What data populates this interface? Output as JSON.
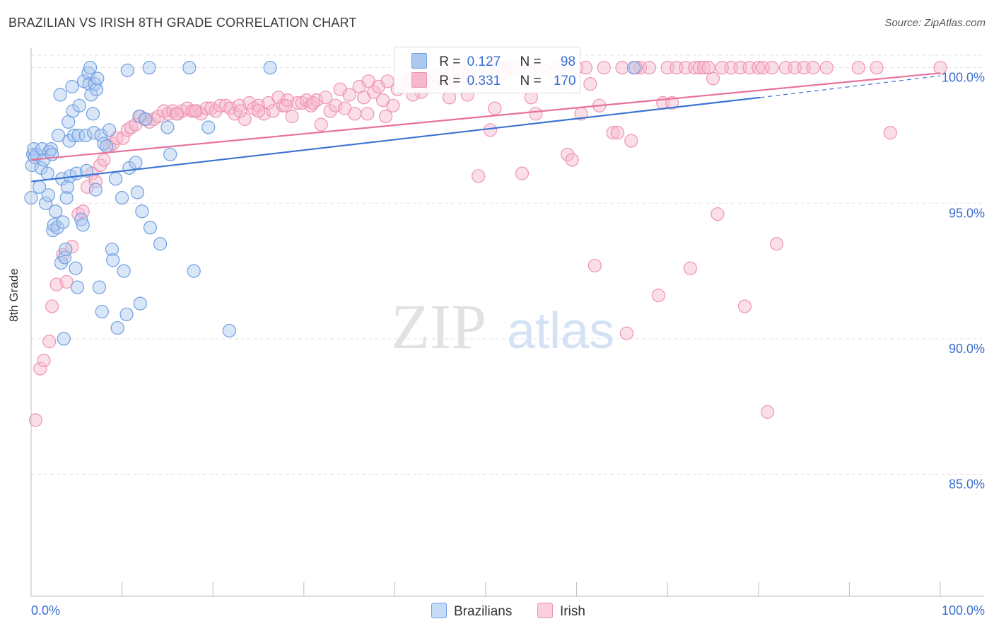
{
  "header": {
    "title": "BRAZILIAN VS IRISH 8TH GRADE CORRELATION CHART",
    "source": "Source: ZipAtlas.com"
  },
  "watermark": "ZIPatlas",
  "legend": {
    "items": [
      {
        "r_label": "R =",
        "r_value": "0.127",
        "n_label": "N =",
        "n_value": "98"
      },
      {
        "r_label": "R =",
        "r_value": "0.331",
        "n_label": "N =",
        "n_value": "170"
      }
    ]
  },
  "bottom_legend": [
    "Brazilians",
    "Irish"
  ],
  "colors": {
    "brazilians_fill": "#aac8f0",
    "brazilians_stroke": "#6f9fe0",
    "brazilians_line": "#3b73d1",
    "irish_fill": "#f6b8cb",
    "irish_stroke": "#ee93b0",
    "irish_line": "#e8709a",
    "tick_text": "#3b6fd1",
    "grid": "#e3e3e3"
  },
  "chart_data": {
    "type": "scatter",
    "title": "BRAZILIAN VS IRISH 8TH GRADE CORRELATION CHART",
    "xlabel": "",
    "ylabel": "8th Grade",
    "xlim": [
      0,
      100
    ],
    "ylim": [
      80.5,
      100.8
    ],
    "x_tick_labels": [
      "0.0%",
      "100.0%"
    ],
    "y_ticks": [
      85,
      90,
      95,
      100
    ],
    "y_tick_labels": [
      "85.0%",
      "90.0%",
      "95.0%",
      "100.0%"
    ],
    "grid": true,
    "legend_position": "top-center",
    "series": [
      {
        "name": "Brazilians",
        "r": 0.127,
        "n": 98,
        "trend": {
          "x0": 0,
          "y0": 95.8,
          "x1": 80.2,
          "y1": 98.9,
          "dashed_to": [
            100,
            99.7
          ]
        },
        "points": [
          [
            0.0,
            95.2
          ],
          [
            0.1,
            96.4
          ],
          [
            0.2,
            96.8
          ],
          [
            0.3,
            97.0
          ],
          [
            0.4,
            96.7
          ],
          [
            0.6,
            96.8
          ],
          [
            0.9,
            95.6
          ],
          [
            1.1,
            96.3
          ],
          [
            1.2,
            97.0
          ],
          [
            1.4,
            96.6
          ],
          [
            1.6,
            95.0
          ],
          [
            1.8,
            96.1
          ],
          [
            1.9,
            95.3
          ],
          [
            2.0,
            96.9
          ],
          [
            2.2,
            97.0
          ],
          [
            2.3,
            96.8
          ],
          [
            2.4,
            94.0
          ],
          [
            2.5,
            94.2
          ],
          [
            2.7,
            94.7
          ],
          [
            2.9,
            94.1
          ],
          [
            3.0,
            97.5
          ],
          [
            3.2,
            99.0
          ],
          [
            3.3,
            92.8
          ],
          [
            3.4,
            95.9
          ],
          [
            3.5,
            94.3
          ],
          [
            3.6,
            90.0
          ],
          [
            3.7,
            93.0
          ],
          [
            3.8,
            93.3
          ],
          [
            3.9,
            95.2
          ],
          [
            4.0,
            95.6
          ],
          [
            4.1,
            98.0
          ],
          [
            4.2,
            97.3
          ],
          [
            4.3,
            96.0
          ],
          [
            4.5,
            99.3
          ],
          [
            4.6,
            98.4
          ],
          [
            4.7,
            97.5
          ],
          [
            4.9,
            92.6
          ],
          [
            5.0,
            96.1
          ],
          [
            5.1,
            91.9
          ],
          [
            5.2,
            97.5
          ],
          [
            5.3,
            98.6
          ],
          [
            5.5,
            94.4
          ],
          [
            5.7,
            94.2
          ],
          [
            5.8,
            99.5
          ],
          [
            6.0,
            97.5
          ],
          [
            6.1,
            96.2
          ],
          [
            6.3,
            99.8
          ],
          [
            6.4,
            99.4
          ],
          [
            6.5,
            100.0
          ],
          [
            6.6,
            99.0
          ],
          [
            6.8,
            98.3
          ],
          [
            6.9,
            97.6
          ],
          [
            7.0,
            99.4
          ],
          [
            7.1,
            95.5
          ],
          [
            7.2,
            99.2
          ],
          [
            7.3,
            99.6
          ],
          [
            7.5,
            91.9
          ],
          [
            7.7,
            97.5
          ],
          [
            7.8,
            91.0
          ],
          [
            8.0,
            97.2
          ],
          [
            8.3,
            97.1
          ],
          [
            8.6,
            97.7
          ],
          [
            8.9,
            93.3
          ],
          [
            9.0,
            92.9
          ],
          [
            9.3,
            95.9
          ],
          [
            9.5,
            90.4
          ],
          [
            10.0,
            95.2
          ],
          [
            10.2,
            92.5
          ],
          [
            10.5,
            90.9
          ],
          [
            10.6,
            99.9
          ],
          [
            10.8,
            96.3
          ],
          [
            11.5,
            96.5
          ],
          [
            11.7,
            95.4
          ],
          [
            11.9,
            98.2
          ],
          [
            12.0,
            91.3
          ],
          [
            12.2,
            94.7
          ],
          [
            12.6,
            98.1
          ],
          [
            13.0,
            100.0
          ],
          [
            13.1,
            94.1
          ],
          [
            14.2,
            93.5
          ],
          [
            15.0,
            97.8
          ],
          [
            15.3,
            96.8
          ],
          [
            17.4,
            100.0
          ],
          [
            17.9,
            92.5
          ],
          [
            19.5,
            97.8
          ],
          [
            21.8,
            90.3
          ],
          [
            26.3,
            100.0
          ],
          [
            66.3,
            100.0
          ]
        ]
      },
      {
        "name": "Irish",
        "r": 0.331,
        "n": 170,
        "trend": {
          "x0": 0,
          "y0": 96.6,
          "x1": 100,
          "y1": 99.8
        },
        "points": [
          [
            0.5,
            87.0
          ],
          [
            1.0,
            88.9
          ],
          [
            1.4,
            89.2
          ],
          [
            2.0,
            89.9
          ],
          [
            2.3,
            91.2
          ],
          [
            2.8,
            92.0
          ],
          [
            3.5,
            93.1
          ],
          [
            3.9,
            92.1
          ],
          [
            4.5,
            93.4
          ],
          [
            5.2,
            94.6
          ],
          [
            5.7,
            94.7
          ],
          [
            6.2,
            95.6
          ],
          [
            6.7,
            96.1
          ],
          [
            7.1,
            95.8
          ],
          [
            7.6,
            96.4
          ],
          [
            8.0,
            96.6
          ],
          [
            8.6,
            97.1
          ],
          [
            9.0,
            97.2
          ],
          [
            9.4,
            97.4
          ],
          [
            10.1,
            97.4
          ],
          [
            10.6,
            97.7
          ],
          [
            11.0,
            97.8
          ],
          [
            11.5,
            97.9
          ],
          [
            12.0,
            98.2
          ],
          [
            12.5,
            98.1
          ],
          [
            13.0,
            98.0
          ],
          [
            13.5,
            98.1
          ],
          [
            14.0,
            98.2
          ],
          [
            14.6,
            98.4
          ],
          [
            15.1,
            98.3
          ],
          [
            15.6,
            98.4
          ],
          [
            16.1,
            98.3
          ],
          [
            16.6,
            98.4
          ],
          [
            17.2,
            98.5
          ],
          [
            17.7,
            98.4
          ],
          [
            18.2,
            98.4
          ],
          [
            18.7,
            98.3
          ],
          [
            19.3,
            98.5
          ],
          [
            19.8,
            98.5
          ],
          [
            20.3,
            98.4
          ],
          [
            20.8,
            98.6
          ],
          [
            21.4,
            98.6
          ],
          [
            21.9,
            98.5
          ],
          [
            22.4,
            98.3
          ],
          [
            22.9,
            98.6
          ],
          [
            23.5,
            98.1
          ],
          [
            24.0,
            98.7
          ],
          [
            24.5,
            98.5
          ],
          [
            25.0,
            98.6
          ],
          [
            25.6,
            98.3
          ],
          [
            26.1,
            98.7
          ],
          [
            26.6,
            98.4
          ],
          [
            27.2,
            98.9
          ],
          [
            27.7,
            98.6
          ],
          [
            28.2,
            98.8
          ],
          [
            28.7,
            98.2
          ],
          [
            29.3,
            98.7
          ],
          [
            29.8,
            98.7
          ],
          [
            30.3,
            98.8
          ],
          [
            30.8,
            98.6
          ],
          [
            31.4,
            98.8
          ],
          [
            31.9,
            97.9
          ],
          [
            32.4,
            98.9
          ],
          [
            32.9,
            98.4
          ],
          [
            33.5,
            98.6
          ],
          [
            34.0,
            99.2
          ],
          [
            34.5,
            98.5
          ],
          [
            35.0,
            99.0
          ],
          [
            35.6,
            98.3
          ],
          [
            36.1,
            99.3
          ],
          [
            36.6,
            98.9
          ],
          [
            37.1,
            99.5
          ],
          [
            37.7,
            99.1
          ],
          [
            38.2,
            99.3
          ],
          [
            38.7,
            98.8
          ],
          [
            39.2,
            99.5
          ],
          [
            39.8,
            98.6
          ],
          [
            40.3,
            99.2
          ],
          [
            40.8,
            99.4
          ],
          [
            41.4,
            99.5
          ],
          [
            41.9,
            99.6
          ],
          [
            42.4,
            99.3
          ],
          [
            42.9,
            99.1
          ],
          [
            43.5,
            99.5
          ],
          [
            44.0,
            99.3
          ],
          [
            44.5,
            99.7
          ],
          [
            45.0,
            99.6
          ],
          [
            45.6,
            99.4
          ],
          [
            46.1,
            99.8
          ],
          [
            46.6,
            99.5
          ],
          [
            47.1,
            100.0
          ],
          [
            47.7,
            99.7
          ],
          [
            48.2,
            99.6
          ],
          [
            48.7,
            99.5
          ],
          [
            49.2,
            96.0
          ],
          [
            50.0,
            100.0
          ],
          [
            50.5,
            97.7
          ],
          [
            51.0,
            98.5
          ],
          [
            51.5,
            100.0
          ],
          [
            52.0,
            99.8
          ],
          [
            52.5,
            100.0
          ],
          [
            53.0,
            100.0
          ],
          [
            54.0,
            96.1
          ],
          [
            55.0,
            99.9
          ],
          [
            55.5,
            98.3
          ],
          [
            56.0,
            100.0
          ],
          [
            57.5,
            99.8
          ],
          [
            58.0,
            100.0
          ],
          [
            59.0,
            96.8
          ],
          [
            59.5,
            96.6
          ],
          [
            60.0,
            100.0
          ],
          [
            61.0,
            100.0
          ],
          [
            61.5,
            99.4
          ],
          [
            62.0,
            92.7
          ],
          [
            63.0,
            100.0
          ],
          [
            64.0,
            97.6
          ],
          [
            64.5,
            97.6
          ],
          [
            65.0,
            100.0
          ],
          [
            65.5,
            90.2
          ],
          [
            66.0,
            97.3
          ],
          [
            67.0,
            100.0
          ],
          [
            68.0,
            100.0
          ],
          [
            69.0,
            91.6
          ],
          [
            69.5,
            98.7
          ],
          [
            70.0,
            100.0
          ],
          [
            70.5,
            98.7
          ],
          [
            71.0,
            100.0
          ],
          [
            72.0,
            100.0
          ],
          [
            72.5,
            92.6
          ],
          [
            73.0,
            100.0
          ],
          [
            73.5,
            100.0
          ],
          [
            74.0,
            100.0
          ],
          [
            75.0,
            99.6
          ],
          [
            75.5,
            94.6
          ],
          [
            76.0,
            100.0
          ],
          [
            77.0,
            100.0
          ],
          [
            78.0,
            100.0
          ],
          [
            78.5,
            91.2
          ],
          [
            79.0,
            100.0
          ],
          [
            80.0,
            100.0
          ],
          [
            80.5,
            100.0
          ],
          [
            81.0,
            87.3
          ],
          [
            81.5,
            100.0
          ],
          [
            82.0,
            93.5
          ],
          [
            83.0,
            100.0
          ],
          [
            84.0,
            100.0
          ],
          [
            85.0,
            100.0
          ],
          [
            86.0,
            100.0
          ],
          [
            87.5,
            100.0
          ],
          [
            91.0,
            100.0
          ],
          [
            93.0,
            100.0
          ],
          [
            94.5,
            97.6
          ],
          [
            100.0,
            100.0
          ],
          [
            16.0,
            98.3
          ],
          [
            18.0,
            98.4
          ],
          [
            23.0,
            98.4
          ],
          [
            25.0,
            98.4
          ],
          [
            28.0,
            98.6
          ],
          [
            31.0,
            98.7
          ],
          [
            37.0,
            98.3
          ],
          [
            39.0,
            98.2
          ],
          [
            42.0,
            99.0
          ],
          [
            46.0,
            98.9
          ],
          [
            48.0,
            99.0
          ],
          [
            55.0,
            98.9
          ],
          [
            58.5,
            99.4
          ],
          [
            60.5,
            98.3
          ],
          [
            62.5,
            98.6
          ],
          [
            66.5,
            100.0
          ],
          [
            74.5,
            100.0
          ]
        ]
      }
    ]
  }
}
